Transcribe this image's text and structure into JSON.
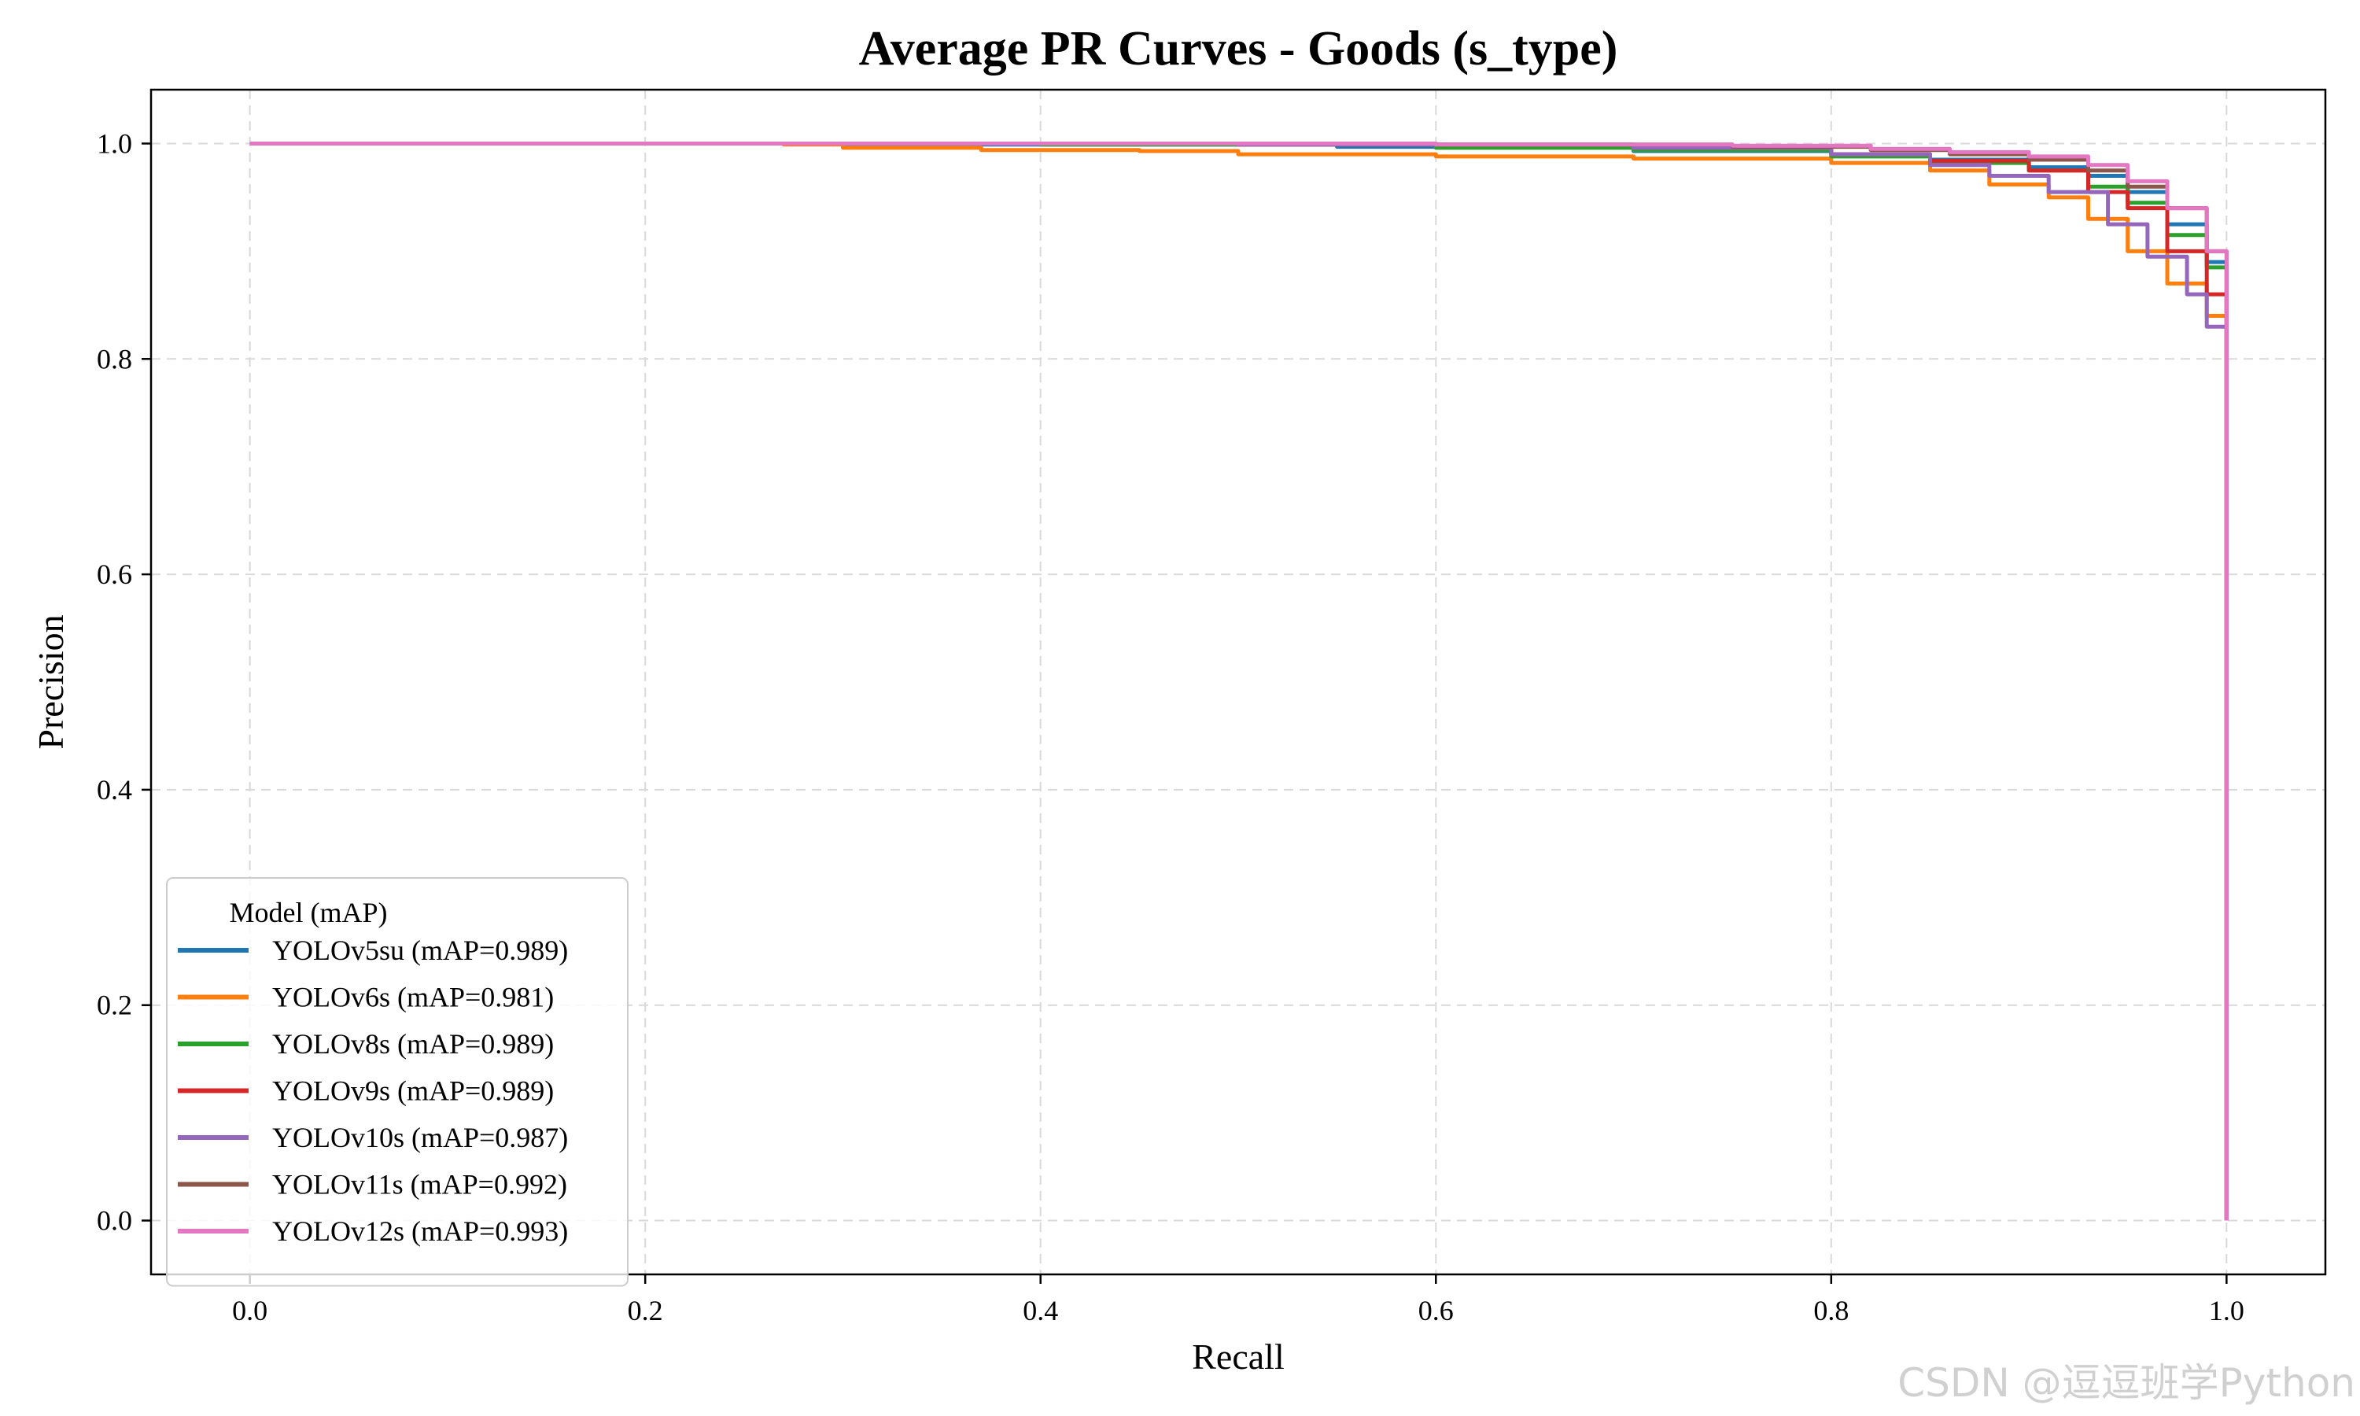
{
  "chart_data": {
    "type": "line",
    "title": "Average PR Curves - Goods (s_type)",
    "xlabel": "Recall",
    "ylabel": "Precision",
    "xlim": [
      -0.05,
      1.05
    ],
    "ylim": [
      -0.05,
      1.05
    ],
    "xticks": [
      "0.0",
      "0.2",
      "0.4",
      "0.6",
      "0.8",
      "1.0"
    ],
    "yticks": [
      "0.0",
      "0.2",
      "0.4",
      "0.6",
      "0.8",
      "1.0"
    ],
    "grid": true,
    "legend": {
      "title": "Model (mAP)",
      "placement": "lower-left"
    },
    "series": [
      {
        "name": "YOLOv5su (mAP=0.989)",
        "color": "#1f77b4",
        "points": [
          [
            0,
            1.0
          ],
          [
            0.3,
            0.999
          ],
          [
            0.55,
            0.997
          ],
          [
            0.7,
            0.993
          ],
          [
            0.8,
            0.99
          ],
          [
            0.85,
            0.985
          ],
          [
            0.9,
            0.978
          ],
          [
            0.93,
            0.97
          ],
          [
            0.95,
            0.955
          ],
          [
            0.97,
            0.925
          ],
          [
            0.99,
            0.89
          ],
          [
            1.0,
            0.86
          ],
          [
            1.0,
            0.0
          ]
        ]
      },
      {
        "name": "YOLOv6s (mAP=0.981)",
        "color": "#ff7f0e",
        "points": [
          [
            0,
            1.0
          ],
          [
            0.27,
            0.999
          ],
          [
            0.3,
            0.996
          ],
          [
            0.37,
            0.994
          ],
          [
            0.45,
            0.993
          ],
          [
            0.5,
            0.99
          ],
          [
            0.6,
            0.988
          ],
          [
            0.7,
            0.986
          ],
          [
            0.8,
            0.982
          ],
          [
            0.85,
            0.975
          ],
          [
            0.88,
            0.962
          ],
          [
            0.91,
            0.95
          ],
          [
            0.93,
            0.93
          ],
          [
            0.95,
            0.9
          ],
          [
            0.97,
            0.87
          ],
          [
            0.99,
            0.84
          ],
          [
            1.0,
            0.79
          ],
          [
            1.0,
            0.0
          ]
        ]
      },
      {
        "name": "YOLOv8s (mAP=0.989)",
        "color": "#2ca02c",
        "points": [
          [
            0,
            1.0
          ],
          [
            0.4,
            0.999
          ],
          [
            0.6,
            0.996
          ],
          [
            0.7,
            0.994
          ],
          [
            0.8,
            0.988
          ],
          [
            0.85,
            0.982
          ],
          [
            0.9,
            0.975
          ],
          [
            0.93,
            0.96
          ],
          [
            0.95,
            0.945
          ],
          [
            0.97,
            0.915
          ],
          [
            0.99,
            0.885
          ],
          [
            1.0,
            0.85
          ],
          [
            1.0,
            0.0
          ]
        ]
      },
      {
        "name": "YOLOv9s (mAP=0.989)",
        "color": "#d62728",
        "points": [
          [
            0,
            1.0
          ],
          [
            0.5,
            0.999
          ],
          [
            0.7,
            0.996
          ],
          [
            0.8,
            0.99
          ],
          [
            0.85,
            0.984
          ],
          [
            0.9,
            0.975
          ],
          [
            0.93,
            0.955
          ],
          [
            0.95,
            0.94
          ],
          [
            0.97,
            0.9
          ],
          [
            0.99,
            0.86
          ],
          [
            1.0,
            0.82
          ],
          [
            1.0,
            0.0
          ]
        ]
      },
      {
        "name": "YOLOv10s (mAP=0.987)",
        "color": "#9467bd",
        "points": [
          [
            0,
            1.0
          ],
          [
            0.5,
            0.999
          ],
          [
            0.7,
            0.996
          ],
          [
            0.8,
            0.99
          ],
          [
            0.85,
            0.98
          ],
          [
            0.88,
            0.97
          ],
          [
            0.91,
            0.955
          ],
          [
            0.94,
            0.925
          ],
          [
            0.96,
            0.895
          ],
          [
            0.98,
            0.86
          ],
          [
            0.99,
            0.83
          ],
          [
            1.0,
            0.78
          ],
          [
            1.0,
            0.0
          ]
        ]
      },
      {
        "name": "YOLOv11s (mAP=0.992)",
        "color": "#8c564b",
        "points": [
          [
            0,
            1.0
          ],
          [
            0.6,
            0.999
          ],
          [
            0.75,
            0.997
          ],
          [
            0.82,
            0.994
          ],
          [
            0.86,
            0.99
          ],
          [
            0.9,
            0.985
          ],
          [
            0.93,
            0.975
          ],
          [
            0.95,
            0.96
          ],
          [
            0.97,
            0.94
          ],
          [
            0.99,
            0.9
          ],
          [
            1.0,
            0.875
          ],
          [
            1.0,
            0.0
          ]
        ]
      },
      {
        "name": "YOLOv12s (mAP=0.993)",
        "color": "#e377c2",
        "points": [
          [
            0,
            1.0
          ],
          [
            0.6,
            0.999
          ],
          [
            0.75,
            0.998
          ],
          [
            0.82,
            0.995
          ],
          [
            0.86,
            0.992
          ],
          [
            0.9,
            0.988
          ],
          [
            0.93,
            0.98
          ],
          [
            0.95,
            0.965
          ],
          [
            0.97,
            0.94
          ],
          [
            0.99,
            0.9
          ],
          [
            1.0,
            0.87
          ],
          [
            1.0,
            0.0
          ]
        ]
      }
    ]
  },
  "watermark": "CSDN @逗逗班学Python"
}
